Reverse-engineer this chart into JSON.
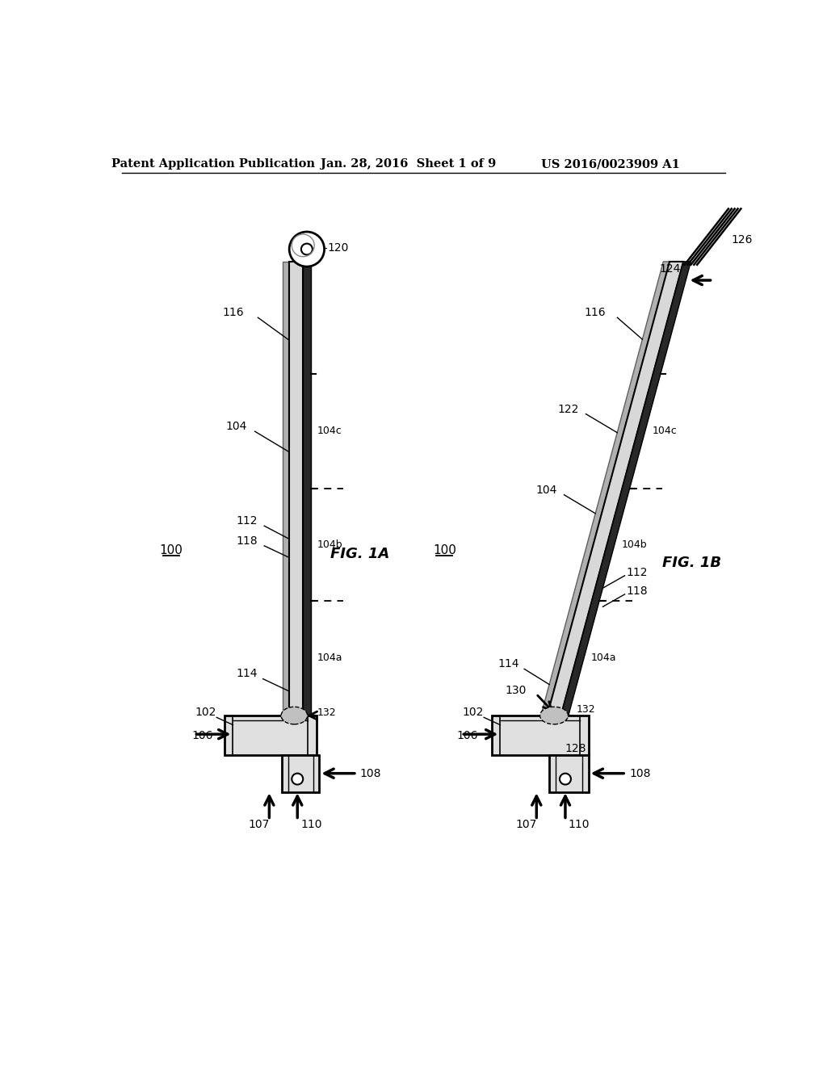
{
  "bg_color": "#ffffff",
  "header_text": "Patent Application Publication",
  "header_date": "Jan. 28, 2016  Sheet 1 of 9",
  "header_patent": "US 2016/0023909 A1",
  "fig1a_label": "FIG. 1A",
  "fig1b_label": "FIG. 1B"
}
